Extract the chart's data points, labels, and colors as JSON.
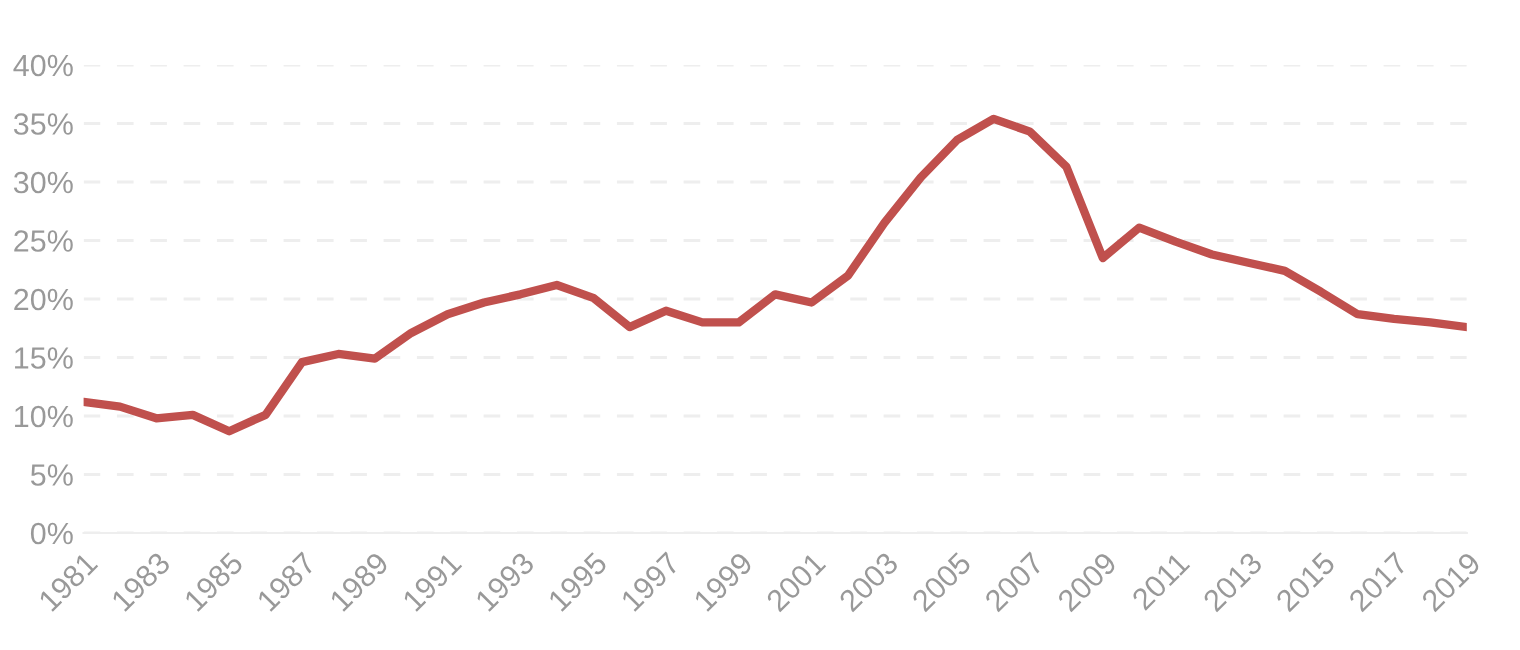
{
  "chart_data": {
    "type": "line",
    "x": [
      1981,
      1982,
      1983,
      1984,
      1985,
      1986,
      1987,
      1988,
      1989,
      1990,
      1991,
      1992,
      1993,
      1994,
      1995,
      1996,
      1997,
      1998,
      1999,
      2000,
      2001,
      2002,
      2003,
      2004,
      2005,
      2006,
      2007,
      2008,
      2009,
      2010,
      2011,
      2012,
      2013,
      2014,
      2015,
      2016,
      2017,
      2018,
      2019
    ],
    "series": [
      {
        "color": "#c0504d",
        "values": [
          11.2,
          10.8,
          9.8,
          10.1,
          8.7,
          10.1,
          14.6,
          15.3,
          14.9,
          17.1,
          18.7,
          19.7,
          20.4,
          21.2,
          20.1,
          17.6,
          19.0,
          18.0,
          18.0,
          20.4,
          19.7,
          22.0,
          26.5,
          30.4,
          33.6,
          35.4,
          34.3,
          31.3,
          23.5,
          26.1,
          24.9,
          23.8,
          23.1,
          22.4,
          20.6,
          18.7,
          18.3,
          18.0,
          17.6
        ]
      }
    ],
    "xlim": [
      1981,
      2019
    ],
    "xticks": [
      1981,
      1983,
      1985,
      1987,
      1989,
      1991,
      1993,
      1995,
      1997,
      1999,
      2001,
      2003,
      2005,
      2007,
      2009,
      2011,
      2013,
      2015,
      2017,
      2019
    ],
    "ylim": [
      0,
      40
    ],
    "yticks": [
      {
        "value": 0,
        "label": "0%"
      },
      {
        "value": 5,
        "label": "5%"
      },
      {
        "value": 10,
        "label": "10%"
      },
      {
        "value": 15,
        "label": "15%"
      },
      {
        "value": 20,
        "label": "20%"
      },
      {
        "value": 25,
        "label": "25%"
      },
      {
        "value": 30,
        "label": "30%"
      },
      {
        "value": 35,
        "label": "35%"
      },
      {
        "value": 40,
        "label": "40%"
      }
    ],
    "grid": "y",
    "marker": "none",
    "line_style": "solid"
  }
}
